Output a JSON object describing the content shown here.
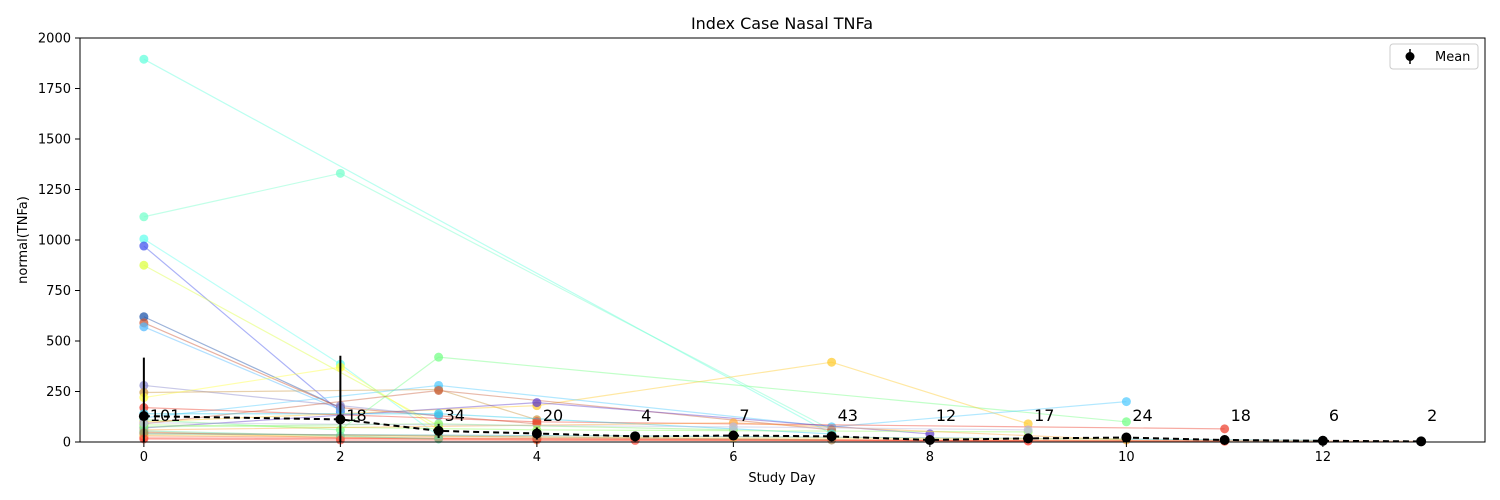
{
  "chart_data": {
    "type": "line",
    "title": "Index Case Nasal TNFa",
    "xlabel": "Study Day",
    "ylabel": "normal(TNFa)",
    "xlim": [
      -0.65,
      13.65
    ],
    "ylim": [
      0,
      2000
    ],
    "xticks": [
      0,
      2,
      4,
      6,
      8,
      10,
      12
    ],
    "yticks": [
      0,
      250,
      500,
      750,
      1000,
      1250,
      1500,
      1750,
      2000
    ],
    "grid": false,
    "legend": {
      "position": "top-right",
      "entries": [
        "Mean"
      ]
    },
    "mean": {
      "name": "Mean",
      "x": [
        0,
        2,
        3,
        4,
        5,
        6,
        7,
        8,
        9,
        10,
        11,
        12,
        13
      ],
      "y": [
        128,
        112,
        55,
        42,
        28,
        32,
        28,
        10,
        18,
        22,
        10,
        6,
        3
      ],
      "err": [
        290,
        315,
        35,
        30,
        10,
        15,
        20,
        8,
        10,
        10,
        5,
        3,
        2
      ],
      "n_labels": [
        "101",
        "18",
        "34",
        "20",
        "4",
        "7",
        "43",
        "12",
        "17",
        "24",
        "18",
        "6",
        "2"
      ]
    },
    "subjects": [
      {
        "color": "#66ffdd",
        "points": [
          [
            0,
            1895
          ],
          [
            7,
            40
          ]
        ]
      },
      {
        "color": "#77ffcc",
        "points": [
          [
            0,
            1115
          ],
          [
            2,
            1330
          ],
          [
            7,
            60
          ]
        ]
      },
      {
        "color": "#66ffee",
        "points": [
          [
            0,
            1005
          ],
          [
            2,
            385
          ],
          [
            3,
            30
          ]
        ]
      },
      {
        "color": "#4455ee",
        "points": [
          [
            0,
            970
          ],
          [
            2,
            150
          ]
        ]
      },
      {
        "color": "#ddff44",
        "points": [
          [
            0,
            875
          ],
          [
            3,
            80
          ]
        ]
      },
      {
        "color": "#2255aa",
        "points": [
          [
            0,
            620
          ],
          [
            2,
            170
          ]
        ]
      },
      {
        "color": "#cc5533",
        "points": [
          [
            0,
            590
          ],
          [
            2,
            170
          ],
          [
            4,
            90
          ]
        ]
      },
      {
        "color": "#55bbff",
        "points": [
          [
            0,
            570
          ],
          [
            2,
            160
          ]
        ]
      },
      {
        "color": "#8888cc",
        "points": [
          [
            0,
            280
          ],
          [
            2,
            180
          ],
          [
            3,
            130
          ]
        ]
      },
      {
        "color": "#cc9944",
        "points": [
          [
            0,
            245
          ],
          [
            3,
            260
          ],
          [
            4,
            110
          ]
        ]
      },
      {
        "color": "#ffff44",
        "points": [
          [
            0,
            220
          ],
          [
            2,
            370
          ],
          [
            3,
            60
          ]
        ]
      },
      {
        "color": "#77ff88",
        "points": [
          [
            0,
            110
          ],
          [
            2,
            60
          ],
          [
            3,
            420
          ],
          [
            10,
            100
          ]
        ]
      },
      {
        "color": "#ffcc33",
        "points": [
          [
            0,
            100
          ],
          [
            4,
            180
          ],
          [
            7,
            395
          ],
          [
            9,
            90
          ]
        ]
      },
      {
        "color": "#55ccff",
        "points": [
          [
            0,
            120
          ],
          [
            3,
            280
          ],
          [
            7,
            75
          ],
          [
            10,
            200
          ]
        ]
      },
      {
        "color": "#ee4433",
        "points": [
          [
            0,
            170
          ],
          [
            4,
            100
          ],
          [
            11,
            65
          ]
        ]
      },
      {
        "color": "#cc6644",
        "points": [
          [
            0,
            90
          ],
          [
            3,
            255
          ],
          [
            7,
            60
          ]
        ]
      },
      {
        "color": "#6644cc",
        "points": [
          [
            0,
            70
          ],
          [
            4,
            195
          ],
          [
            8,
            40
          ]
        ]
      },
      {
        "color": "#33ccee",
        "points": [
          [
            0,
            140
          ],
          [
            3,
            140
          ],
          [
            7,
            40
          ]
        ]
      },
      {
        "color": "#99ff66",
        "points": [
          [
            0,
            85
          ],
          [
            4,
            60
          ],
          [
            9,
            50
          ]
        ]
      },
      {
        "color": "#ffaa44",
        "points": [
          [
            0,
            60
          ],
          [
            6,
            95
          ],
          [
            10,
            10
          ]
        ]
      },
      {
        "color": "#88ee77",
        "points": [
          [
            0,
            75
          ],
          [
            3,
            90
          ],
          [
            6,
            60
          ]
        ]
      },
      {
        "color": "#bbbbdd",
        "points": [
          [
            0,
            95
          ],
          [
            6,
            75
          ],
          [
            9,
            60
          ]
        ]
      },
      {
        "color": "#ff8855",
        "points": [
          [
            0,
            50
          ],
          [
            2,
            20
          ],
          [
            4,
            10
          ],
          [
            11,
            5
          ]
        ]
      },
      {
        "color": "#44aaaa",
        "points": [
          [
            0,
            40
          ],
          [
            5,
            30
          ],
          [
            12,
            8
          ]
        ]
      },
      {
        "color": "#ee7733",
        "points": [
          [
            0,
            30
          ],
          [
            3,
            20
          ],
          [
            8,
            10
          ],
          [
            13,
            3
          ]
        ]
      },
      {
        "color": "#ff3322",
        "points": [
          [
            0,
            20
          ],
          [
            4,
            15
          ],
          [
            9,
            5
          ]
        ]
      },
      {
        "color": "#ffdd55",
        "points": [
          [
            0,
            35
          ],
          [
            6,
            20
          ],
          [
            10,
            15
          ]
        ]
      },
      {
        "color": "#66ddaa",
        "points": [
          [
            0,
            55
          ],
          [
            2,
            30
          ],
          [
            3,
            15
          ]
        ]
      },
      {
        "color": "#aa8855",
        "points": [
          [
            0,
            45
          ],
          [
            4,
            25
          ],
          [
            7,
            10
          ]
        ]
      },
      {
        "color": "#ff5544",
        "points": [
          [
            0,
            15
          ],
          [
            2,
            10
          ],
          [
            5,
            8
          ],
          [
            11,
            4
          ]
        ]
      }
    ]
  }
}
